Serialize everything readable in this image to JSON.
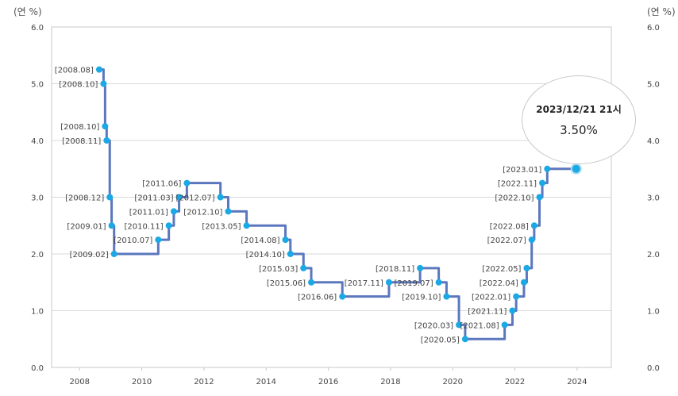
{
  "chart_data": {
    "type": "line",
    "step": true,
    "unit_left": "(연 %)",
    "unit_right": "(연 %)",
    "ylim": [
      0,
      6
    ],
    "yticks": [
      "0.0",
      "1.0",
      "2.0",
      "3.0",
      "4.0",
      "5.0",
      "6.0"
    ],
    "xlim": [
      2007.1,
      2025.1
    ],
    "xticks": [
      "2008",
      "2010",
      "2012",
      "2014",
      "2016",
      "2018",
      "2020",
      "2022",
      "2024"
    ],
    "grid": true,
    "line_color": "#5b77bd",
    "point_color": "#1aa9e4",
    "points": [
      {
        "label": "[2008.08]",
        "x": 2008.63,
        "y": 5.25
      },
      {
        "label": "[2008.10]",
        "x": 2008.77,
        "y": 5.0
      },
      {
        "label": "[2008.10]",
        "x": 2008.82,
        "y": 4.25
      },
      {
        "label": "[2008.11]",
        "x": 2008.87,
        "y": 4.0
      },
      {
        "label": "[2008.12]",
        "x": 2008.97,
        "y": 3.0
      },
      {
        "label": "[2009.01]",
        "x": 2009.03,
        "y": 2.5
      },
      {
        "label": "[2009.02]",
        "x": 2009.11,
        "y": 2.0
      },
      {
        "label": "[2010.07]",
        "x": 2010.53,
        "y": 2.25
      },
      {
        "label": "[2010.11]",
        "x": 2010.87,
        "y": 2.5
      },
      {
        "label": "[2011.01]",
        "x": 2011.03,
        "y": 2.75
      },
      {
        "label": "[2011.03]",
        "x": 2011.2,
        "y": 3.0
      },
      {
        "label": "[2011.06]",
        "x": 2011.45,
        "y": 3.25
      },
      {
        "label": "[2012.07]",
        "x": 2012.53,
        "y": 3.0
      },
      {
        "label": "[2012.10]",
        "x": 2012.78,
        "y": 2.75
      },
      {
        "label": "[2013.05]",
        "x": 2013.37,
        "y": 2.5
      },
      {
        "label": "[2014.08]",
        "x": 2014.62,
        "y": 2.25
      },
      {
        "label": "[2014.10]",
        "x": 2014.78,
        "y": 2.0
      },
      {
        "label": "[2015.03]",
        "x": 2015.2,
        "y": 1.75
      },
      {
        "label": "[2015.06]",
        "x": 2015.45,
        "y": 1.5
      },
      {
        "label": "[2016.06]",
        "x": 2016.45,
        "y": 1.25
      },
      {
        "label": "[2017.11]",
        "x": 2017.95,
        "y": 1.5
      },
      {
        "label": "[2018.11]",
        "x": 2018.95,
        "y": 1.75
      },
      {
        "label": "[2019.07]",
        "x": 2019.55,
        "y": 1.5
      },
      {
        "label": "[2019.10]",
        "x": 2019.8,
        "y": 1.25
      },
      {
        "label": "[2020.03]",
        "x": 2020.2,
        "y": 0.75
      },
      {
        "label": "[2020.05]",
        "x": 2020.4,
        "y": 0.5
      },
      {
        "label": "[2021.08]",
        "x": 2021.67,
        "y": 0.75
      },
      {
        "label": "[2021.11]",
        "x": 2021.92,
        "y": 1.0
      },
      {
        "label": "[2022.01]",
        "x": 2022.04,
        "y": 1.25
      },
      {
        "label": "[2022.04]",
        "x": 2022.29,
        "y": 1.5
      },
      {
        "label": "[2022.05]",
        "x": 2022.38,
        "y": 1.75
      },
      {
        "label": "[2022.07]",
        "x": 2022.54,
        "y": 2.25
      },
      {
        "label": "[2022.08]",
        "x": 2022.62,
        "y": 2.5
      },
      {
        "label": "[2022.10]",
        "x": 2022.79,
        "y": 3.0
      },
      {
        "label": "[2022.11]",
        "x": 2022.88,
        "y": 3.25
      },
      {
        "label": "[2023.01]",
        "x": 2023.04,
        "y": 3.5
      }
    ],
    "end_point": {
      "x": 2023.97,
      "y": 3.5
    },
    "tooltip": {
      "date": "2023/12/21 21시",
      "value": "3.50%"
    }
  }
}
